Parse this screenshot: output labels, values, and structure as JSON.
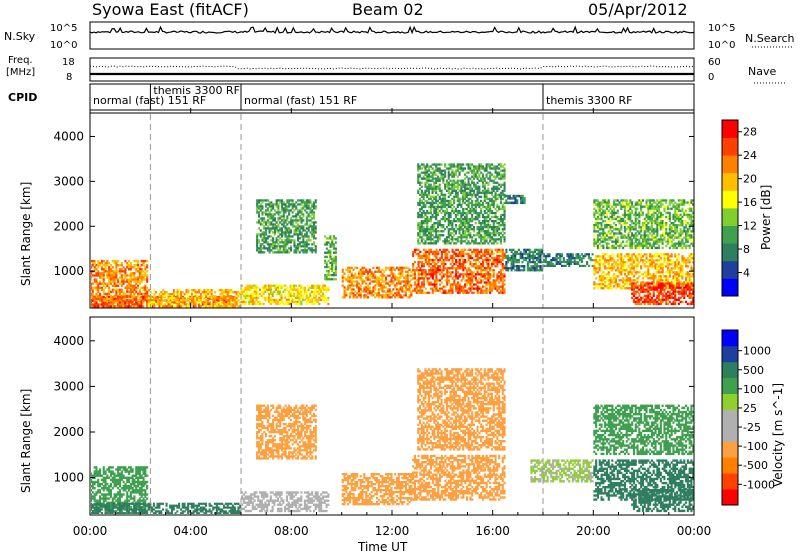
{
  "header": {
    "station": "Syowa East (fitACF)",
    "beam": "Beam 02",
    "date": "05/Apr/2012"
  },
  "nsky_panel": {
    "left_label": "N.Sky",
    "right_label": "N.Search",
    "ytick_top": "10^5",
    "ytick_bottom": "10^0"
  },
  "freq_panel": {
    "left_label_1": "Freq.",
    "left_label_2": "[MHz]",
    "right_label": "Nave",
    "ytick_left_top": "18",
    "ytick_left_bottom": "8",
    "ytick_right_top": "60",
    "ytick_right_bottom": "0"
  },
  "cpid_panel": {
    "label": "CPID",
    "segments": [
      {
        "name": "normal (fast) 151 RF",
        "start_hour": 0.0,
        "end_hour": 2.4
      },
      {
        "name": "themis 3300 RF",
        "start_hour": 2.4,
        "end_hour": 6.0
      },
      {
        "name": "normal (fast) 151 RF",
        "start_hour": 6.0,
        "end_hour": 18.0
      },
      {
        "name": "themis 3300 RF",
        "start_hour": 18.0,
        "end_hour": 24.0
      }
    ]
  },
  "x_axis": {
    "label": "Time UT",
    "ticks": [
      "00:00",
      "04:00",
      "08:00",
      "12:00",
      "16:00",
      "20:00",
      "00:00"
    ]
  },
  "colors": {
    "power": [
      "#0000ff",
      "#1f3f9f",
      "#2f7f5f",
      "#3fa04f",
      "#7fcf2f",
      "#ffff00",
      "#ffbf00",
      "#ff8000",
      "#ff4000",
      "#ff0000"
    ],
    "velocity": [
      "#ff0000",
      "#ff4000",
      "#ff8000",
      "#ffa040",
      "#b0b0b0",
      "#b0b0b0",
      "#8fd02f",
      "#3fa04f",
      "#2f7f5f",
      "#1f3f9f",
      "#0000ff"
    ]
  },
  "chart_data": [
    {
      "type": "heatmap",
      "title": "Power",
      "xlabel": "Time UT",
      "ylabel": "Slant Range [km]",
      "xlim": [
        0,
        24
      ],
      "ylim": [
        180,
        4500
      ],
      "yticks": [
        1000,
        2000,
        3000,
        4000
      ],
      "colorbar": {
        "label": "Power [dB]",
        "ticks": [
          4,
          8,
          12,
          16,
          20,
          24,
          28
        ],
        "range": [
          0,
          30
        ]
      },
      "regions": [
        {
          "t0": 0.0,
          "t1": 2.3,
          "r0": 200,
          "r1": 1250,
          "value": 22
        },
        {
          "t0": 0.0,
          "t1": 5.8,
          "r0": 200,
          "r1": 450,
          "value": 24
        },
        {
          "t0": 2.3,
          "t1": 6.0,
          "r0": 200,
          "r1": 600,
          "value": 20
        },
        {
          "t0": 6.0,
          "t1": 9.5,
          "r0": 250,
          "r1": 700,
          "value": 18
        },
        {
          "t0": 6.6,
          "t1": 9.0,
          "r0": 1400,
          "r1": 2600,
          "value": 10
        },
        {
          "t0": 9.3,
          "t1": 9.8,
          "r0": 800,
          "r1": 1800,
          "value": 12
        },
        {
          "t0": 10.0,
          "t1": 12.8,
          "r0": 400,
          "r1": 1100,
          "value": 22
        },
        {
          "t0": 12.8,
          "t1": 16.5,
          "r0": 500,
          "r1": 1500,
          "value": 24
        },
        {
          "t0": 13.0,
          "t1": 16.5,
          "r0": 1600,
          "r1": 3400,
          "value": 10
        },
        {
          "t0": 16.5,
          "t1": 18.0,
          "r0": 1000,
          "r1": 1500,
          "value": 8
        },
        {
          "t0": 16.5,
          "t1": 17.3,
          "r0": 2500,
          "r1": 2700,
          "value": 8
        },
        {
          "t0": 18.0,
          "t1": 20.0,
          "r0": 1100,
          "r1": 1400,
          "value": 8
        },
        {
          "t0": 20.0,
          "t1": 24.0,
          "r0": 600,
          "r1": 1400,
          "value": 20
        },
        {
          "t0": 21.5,
          "t1": 24.0,
          "r0": 250,
          "r1": 750,
          "value": 26
        },
        {
          "t0": 20.0,
          "t1": 24.0,
          "r0": 1500,
          "r1": 2600,
          "value": 12
        }
      ]
    },
    {
      "type": "heatmap",
      "title": "Velocity",
      "xlabel": "Time UT",
      "ylabel": "Slant Range [km]",
      "xlim": [
        0,
        24
      ],
      "ylim": [
        180,
        4500
      ],
      "yticks": [
        1000,
        2000,
        3000,
        4000
      ],
      "colorbar": {
        "label": "Velocity [m s^-1]",
        "ticks": [
          "1000",
          "500",
          "100",
          "25",
          "-25",
          "-100",
          "-500",
          "-1000"
        ]
      },
      "regions": [
        {
          "t0": 0.0,
          "t1": 2.3,
          "r0": 200,
          "r1": 1250,
          "value": 50
        },
        {
          "t0": 0.0,
          "t1": 6.0,
          "r0": 200,
          "r1": 450,
          "value": 120
        },
        {
          "t0": 6.0,
          "t1": 9.5,
          "r0": 250,
          "r1": 700,
          "value": -80
        },
        {
          "t0": 6.6,
          "t1": 9.0,
          "r0": 1400,
          "r1": 2600,
          "value": -300
        },
        {
          "t0": 10.0,
          "t1": 12.8,
          "r0": 400,
          "r1": 1100,
          "value": -150
        },
        {
          "t0": 12.8,
          "t1": 16.5,
          "r0": 500,
          "r1": 1500,
          "value": -200
        },
        {
          "t0": 13.0,
          "t1": 16.5,
          "r0": 1600,
          "r1": 3400,
          "value": -400
        },
        {
          "t0": 17.5,
          "t1": 20.0,
          "r0": 900,
          "r1": 1400,
          "value": 0
        },
        {
          "t0": 20.0,
          "t1": 24.0,
          "r0": 500,
          "r1": 1400,
          "value": 150
        },
        {
          "t0": 21.5,
          "t1": 24.0,
          "r0": 250,
          "r1": 750,
          "value": 400
        },
        {
          "t0": 20.0,
          "t1": 24.0,
          "r0": 1500,
          "r1": 2600,
          "value": 80
        }
      ]
    }
  ]
}
